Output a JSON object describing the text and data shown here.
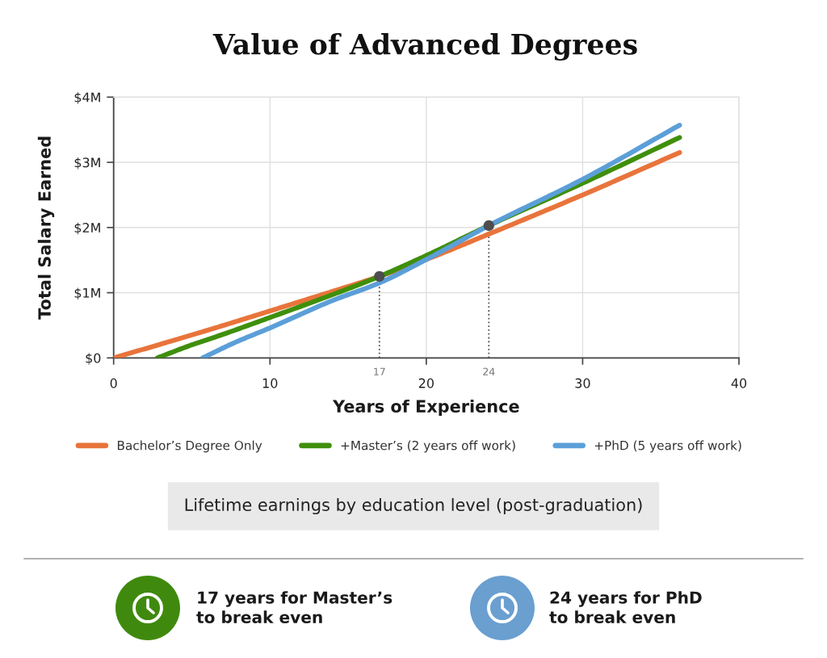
{
  "chart_data": {
    "type": "line",
    "title": "Value of Advanced Degrees",
    "xlabel": "Years of Experience",
    "ylabel": "Total Salary Earned",
    "xlim": [
      0,
      40
    ],
    "ylim": [
      0,
      4
    ],
    "xticks": [
      0,
      10,
      20,
      30,
      40
    ],
    "yticks": [
      {
        "value": 0,
        "label": "$0"
      },
      {
        "value": 1,
        "label": "$1M"
      },
      {
        "value": 2,
        "label": "$2M"
      },
      {
        "value": 3,
        "label": "$3M"
      },
      {
        "value": 4,
        "label": "$4M"
      }
    ],
    "grid": true,
    "legend": "bottom",
    "series": [
      {
        "name": "Bachelor’s Degree Only",
        "color": "#e8743b",
        "x": [
          0,
          3,
          6.5,
          10,
          14,
          17,
          20,
          24,
          30,
          36.2
        ],
        "values": [
          0,
          0.21,
          0.46,
          0.72,
          1.02,
          1.25,
          1.51,
          1.9,
          2.5,
          3.15
        ]
      },
      {
        "name": "+Master’s (2 years off work)",
        "color": "#3f8f0b",
        "x": [
          2.8,
          5,
          6.5,
          10,
          14,
          17,
          20,
          24,
          30,
          36.2
        ],
        "values": [
          0,
          0.2,
          0.32,
          0.62,
          0.97,
          1.25,
          1.57,
          2.03,
          2.68,
          3.38
        ]
      },
      {
        "name": "+PhD (5 years off work)",
        "color": "#5b9fd8",
        "x": [
          5.7,
          7.7,
          10,
          14,
          17,
          20,
          24,
          30,
          36.2
        ],
        "values": [
          0,
          0.23,
          0.46,
          0.88,
          1.15,
          1.51,
          2.03,
          2.74,
          3.57
        ]
      },
      {
        "type": "scatter",
        "color": "#4d4d4d",
        "marker": "circle",
        "x": [
          17,
          24
        ],
        "values": [
          1.25,
          2.03
        ]
      }
    ],
    "ref_lines": [
      {
        "axis": "x",
        "value": 17,
        "label": "17",
        "line_style": "dotted",
        "color": "#555555"
      },
      {
        "axis": "x",
        "value": 24,
        "label": "24",
        "line_style": "dotted",
        "color": "#555555"
      }
    ],
    "annotations": [
      "Lifetime earnings by education level (post-graduation)",
      "17 years for Master’s\nto break even",
      "24 years for PhD\nto break even"
    ]
  }
}
